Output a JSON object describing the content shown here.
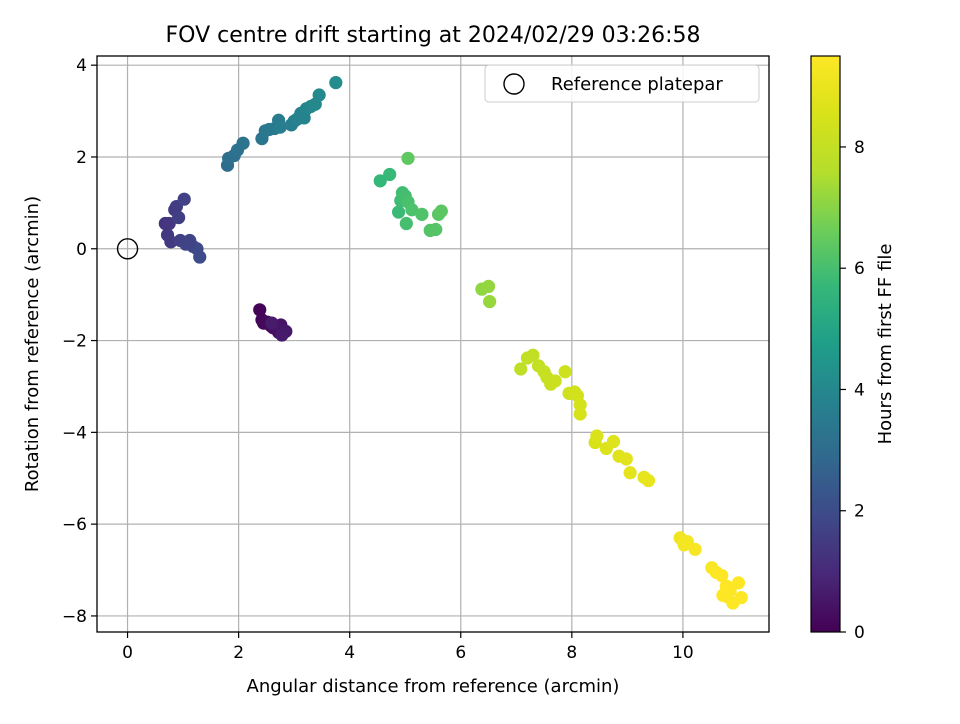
{
  "chart_data": {
    "type": "scatter",
    "title": "FOV centre drift starting at 2024/02/29 03:26:58",
    "xlabel": "Angular distance from reference (arcmin)",
    "ylabel": "Rotation from reference (arcmin)",
    "xlim": [
      -0.55,
      11.55
    ],
    "ylim": [
      -8.35,
      4.2
    ],
    "xticks": [
      0,
      2,
      4,
      6,
      8,
      10
    ],
    "yticks": [
      -8,
      -6,
      -4,
      -2,
      0,
      2,
      4
    ],
    "xtick_labels": [
      "0",
      "2",
      "4",
      "6",
      "8",
      "10"
    ],
    "ytick_labels": [
      "−8",
      "−6",
      "−4",
      "−2",
      "0",
      "2",
      "4"
    ],
    "grid": true,
    "legend": {
      "position": "top-right",
      "entries": [
        "Reference platepar"
      ]
    },
    "reference_point": {
      "x": 0,
      "y": 0
    },
    "colorbar": {
      "label": "Hours from first FF file",
      "range": [
        0,
        9.5
      ],
      "ticks": [
        0,
        2,
        4,
        6,
        8
      ],
      "tick_labels": [
        "0",
        "2",
        "4",
        "6",
        "8"
      ],
      "colormap": "viridis"
    },
    "series": [
      {
        "points": [
          [
            2.38,
            -1.33,
            0.05
          ],
          [
            2.42,
            -1.55,
            0.1
          ],
          [
            2.45,
            -1.62,
            0.15
          ],
          [
            2.52,
            -1.6,
            0.2
          ],
          [
            2.58,
            -1.68,
            0.25
          ],
          [
            2.62,
            -1.72,
            0.3
          ],
          [
            2.68,
            -1.75,
            0.35
          ],
          [
            2.72,
            -1.82,
            0.4
          ],
          [
            2.76,
            -1.66,
            0.45
          ],
          [
            2.8,
            -1.78,
            0.5
          ],
          [
            2.85,
            -1.8,
            0.55
          ],
          [
            2.78,
            -1.88,
            0.6
          ],
          [
            2.6,
            -1.62,
            0.65
          ],
          [
            0.68,
            0.55,
            1.3
          ],
          [
            0.75,
            0.55,
            1.35
          ],
          [
            0.72,
            0.3,
            1.4
          ],
          [
            0.78,
            0.15,
            1.45
          ],
          [
            0.85,
            0.85,
            1.5
          ],
          [
            0.88,
            0.92,
            1.55
          ],
          [
            0.92,
            0.68,
            1.6
          ],
          [
            0.95,
            0.18,
            1.65
          ],
          [
            1.02,
            1.08,
            1.7
          ],
          [
            1.05,
            0.1,
            1.75
          ],
          [
            1.12,
            0.18,
            1.8
          ],
          [
            1.18,
            0.05,
            1.85
          ],
          [
            1.25,
            0.0,
            1.9
          ],
          [
            1.3,
            -0.18,
            1.95
          ],
          [
            1.1,
            0.12,
            1.72
          ],
          [
            1.8,
            1.82,
            3.05
          ],
          [
            1.82,
            1.97,
            3.1
          ],
          [
            1.92,
            2.03,
            3.15
          ],
          [
            1.98,
            2.15,
            3.2
          ],
          [
            2.08,
            2.3,
            3.25
          ],
          [
            2.42,
            2.4,
            3.35
          ],
          [
            2.48,
            2.57,
            3.4
          ],
          [
            2.55,
            2.6,
            3.45
          ],
          [
            2.65,
            2.62,
            3.5
          ],
          [
            2.72,
            2.8,
            3.55
          ],
          [
            2.75,
            2.65,
            3.6
          ],
          [
            2.95,
            2.7,
            3.65
          ],
          [
            3.0,
            2.78,
            3.7
          ],
          [
            3.05,
            2.82,
            3.75
          ],
          [
            3.12,
            2.95,
            3.8
          ],
          [
            3.18,
            2.85,
            3.85
          ],
          [
            3.22,
            3.05,
            3.9
          ],
          [
            3.3,
            3.1,
            3.95
          ],
          [
            3.38,
            3.15,
            4.0
          ],
          [
            3.45,
            3.35,
            4.05
          ],
          [
            3.75,
            3.62,
            4.15
          ],
          [
            4.55,
            1.48,
            5.7
          ],
          [
            4.72,
            1.62,
            5.75
          ],
          [
            4.88,
            0.8,
            5.8
          ],
          [
            4.92,
            1.05,
            5.85
          ],
          [
            4.95,
            1.22,
            5.9
          ],
          [
            5.0,
            1.15,
            5.95
          ],
          [
            5.02,
            0.55,
            6.0
          ],
          [
            5.05,
            1.02,
            6.05
          ],
          [
            5.12,
            0.85,
            6.1
          ],
          [
            5.3,
            0.75,
            6.15
          ],
          [
            5.45,
            0.4,
            6.2
          ],
          [
            5.55,
            0.42,
            6.25
          ],
          [
            5.6,
            0.75,
            6.3
          ],
          [
            5.65,
            0.82,
            6.35
          ],
          [
            5.05,
            1.97,
            6.4
          ],
          [
            6.38,
            -0.88,
            7.1
          ],
          [
            6.5,
            -0.82,
            7.15
          ],
          [
            6.52,
            -1.15,
            7.2
          ],
          [
            7.08,
            -2.62,
            7.85
          ],
          [
            7.2,
            -2.38,
            7.9
          ],
          [
            7.3,
            -2.32,
            7.95
          ],
          [
            7.4,
            -2.55,
            8.0
          ],
          [
            7.5,
            -2.68,
            8.05
          ],
          [
            7.55,
            -2.8,
            8.1
          ],
          [
            7.62,
            -2.95,
            8.15
          ],
          [
            7.7,
            -2.88,
            8.2
          ],
          [
            7.88,
            -2.68,
            8.25
          ],
          [
            7.95,
            -3.15,
            8.3
          ],
          [
            8.05,
            -3.12,
            8.35
          ],
          [
            8.1,
            -3.2,
            8.4
          ],
          [
            8.15,
            -3.4,
            8.45
          ],
          [
            8.15,
            -3.6,
            8.5
          ],
          [
            8.42,
            -4.22,
            8.55
          ],
          [
            8.45,
            -4.08,
            8.6
          ],
          [
            8.62,
            -4.35,
            8.65
          ],
          [
            8.75,
            -4.2,
            8.7
          ],
          [
            8.85,
            -4.52,
            8.75
          ],
          [
            8.98,
            -4.58,
            8.8
          ],
          [
            9.05,
            -4.88,
            8.85
          ],
          [
            9.3,
            -4.98,
            8.9
          ],
          [
            9.38,
            -5.05,
            8.95
          ],
          [
            9.95,
            -6.3,
            9.2
          ],
          [
            10.02,
            -6.45,
            9.25
          ],
          [
            10.08,
            -6.38,
            9.3
          ],
          [
            10.22,
            -6.55,
            9.35
          ],
          [
            10.52,
            -6.95,
            9.4
          ],
          [
            10.6,
            -7.05,
            9.45
          ],
          [
            10.7,
            -7.12,
            9.5
          ],
          [
            10.72,
            -7.55,
            9.5
          ],
          [
            10.78,
            -7.35,
            9.5
          ],
          [
            10.85,
            -7.45,
            9.5
          ],
          [
            10.9,
            -7.72,
            9.5
          ],
          [
            11.0,
            -7.28,
            9.5
          ],
          [
            11.05,
            -7.6,
            9.5
          ],
          [
            10.8,
            -7.58,
            9.5
          ]
        ]
      }
    ]
  }
}
